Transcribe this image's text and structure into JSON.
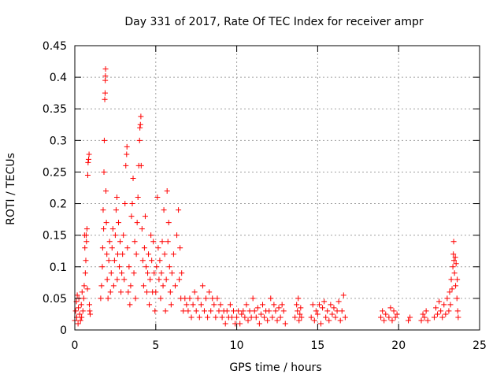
{
  "chart_data": {
    "type": "scatter",
    "title": "Day 331 of 2017, Rate Of TEC Index for receiver ampr",
    "xlabel": "GPS time / hours",
    "ylabel": "ROTI / TECUs",
    "xlim": [
      0,
      25
    ],
    "ylim": [
      0,
      0.45
    ],
    "x_ticks": [
      0,
      5,
      10,
      15,
      20,
      25
    ],
    "x_tick_labels": [
      "0",
      "5",
      "10",
      "15",
      "20",
      "25"
    ],
    "y_ticks": [
      0,
      0.05,
      0.1,
      0.15,
      0.2,
      0.25,
      0.3,
      0.35,
      0.4,
      0.45
    ],
    "y_tick_labels": [
      "0",
      "0.05",
      "0.1",
      "0.15",
      "0.2",
      "0.25",
      "0.3",
      "0.35",
      "0.4",
      "0.45"
    ],
    "grid": true,
    "marker": "+",
    "series": [
      {
        "name": "ROTI",
        "color": "#ff0000",
        "points": [
          [
            0.0,
            0.015
          ],
          [
            0.05,
            0.03
          ],
          [
            0.1,
            0.045
          ],
          [
            0.12,
            0.02
          ],
          [
            0.15,
            0.055
          ],
          [
            0.2,
            0.01
          ],
          [
            0.22,
            0.035
          ],
          [
            0.25,
            0.05
          ],
          [
            0.3,
            0.025
          ],
          [
            0.35,
            0.015
          ],
          [
            0.4,
            0.04
          ],
          [
            0.42,
            0.02
          ],
          [
            0.45,
            0.06
          ],
          [
            0.5,
            0.03
          ],
          [
            0.55,
            0.05
          ],
          [
            0.58,
            0.07
          ],
          [
            0.6,
            0.15
          ],
          [
            0.62,
            0.13
          ],
          [
            0.65,
            0.09
          ],
          [
            0.68,
            0.11
          ],
          [
            0.7,
            0.15
          ],
          [
            0.72,
            0.14
          ],
          [
            0.75,
            0.16
          ],
          [
            0.78,
            0.065
          ],
          [
            0.8,
            0.245
          ],
          [
            0.82,
            0.265
          ],
          [
            0.85,
            0.27
          ],
          [
            0.88,
            0.278
          ],
          [
            0.9,
            0.04
          ],
          [
            0.92,
            0.03
          ],
          [
            0.95,
            0.025
          ],
          [
            1.6,
            0.05
          ],
          [
            1.65,
            0.07
          ],
          [
            1.7,
            0.1
          ],
          [
            1.72,
            0.13
          ],
          [
            1.75,
            0.19
          ],
          [
            1.78,
            0.16
          ],
          [
            1.8,
            0.25
          ],
          [
            1.82,
            0.3
          ],
          [
            1.85,
            0.365
          ],
          [
            1.87,
            0.375
          ],
          [
            1.88,
            0.395
          ],
          [
            1.89,
            0.402
          ],
          [
            1.9,
            0.413
          ],
          [
            1.92,
            0.22
          ],
          [
            1.95,
            0.17
          ],
          [
            1.98,
            0.12
          ],
          [
            2.0,
            0.08
          ],
          [
            2.05,
            0.05
          ],
          [
            2.1,
            0.11
          ],
          [
            2.15,
            0.14
          ],
          [
            2.2,
            0.06
          ],
          [
            2.25,
            0.09
          ],
          [
            2.3,
            0.13
          ],
          [
            2.35,
            0.16
          ],
          [
            2.4,
            0.07
          ],
          [
            2.45,
            0.11
          ],
          [
            2.5,
            0.15
          ],
          [
            2.55,
            0.19
          ],
          [
            2.6,
            0.21
          ],
          [
            2.62,
            0.08
          ],
          [
            2.65,
            0.12
          ],
          [
            2.7,
            0.17
          ],
          [
            2.75,
            0.1
          ],
          [
            2.8,
            0.14
          ],
          [
            2.85,
            0.06
          ],
          [
            2.9,
            0.09
          ],
          [
            2.95,
            0.12
          ],
          [
            3.0,
            0.15
          ],
          [
            3.05,
            0.08
          ],
          [
            3.1,
            0.2
          ],
          [
            3.15,
            0.26
          ],
          [
            3.2,
            0.278
          ],
          [
            3.22,
            0.29
          ],
          [
            3.25,
            0.13
          ],
          [
            3.3,
            0.06
          ],
          [
            3.35,
            0.1
          ],
          [
            3.4,
            0.04
          ],
          [
            3.45,
            0.07
          ],
          [
            3.5,
            0.18
          ],
          [
            3.55,
            0.2
          ],
          [
            3.6,
            0.24
          ],
          [
            3.65,
            0.09
          ],
          [
            3.7,
            0.14
          ],
          [
            3.75,
            0.05
          ],
          [
            3.8,
            0.12
          ],
          [
            3.85,
            0.17
          ],
          [
            3.9,
            0.21
          ],
          [
            3.95,
            0.26
          ],
          [
            4.0,
            0.3
          ],
          [
            4.02,
            0.32
          ],
          [
            4.05,
            0.325
          ],
          [
            4.08,
            0.338
          ],
          [
            4.1,
            0.26
          ],
          [
            4.15,
            0.16
          ],
          [
            4.2,
            0.11
          ],
          [
            4.25,
            0.07
          ],
          [
            4.3,
            0.13
          ],
          [
            4.35,
            0.18
          ],
          [
            4.4,
            0.1
          ],
          [
            4.45,
            0.06
          ],
          [
            4.5,
            0.09
          ],
          [
            4.55,
            0.12
          ],
          [
            4.6,
            0.04
          ],
          [
            4.65,
            0.08
          ],
          [
            4.7,
            0.15
          ],
          [
            4.75,
            0.11
          ],
          [
            4.8,
            0.06
          ],
          [
            4.85,
            0.14
          ],
          [
            4.9,
            0.09
          ],
          [
            4.95,
            0.03
          ],
          [
            5.0,
            0.06
          ],
          [
            5.05,
            0.1
          ],
          [
            5.1,
            0.21
          ],
          [
            5.15,
            0.13
          ],
          [
            5.2,
            0.08
          ],
          [
            5.25,
            0.11
          ],
          [
            5.3,
            0.05
          ],
          [
            5.35,
            0.09
          ],
          [
            5.4,
            0.14
          ],
          [
            5.45,
            0.07
          ],
          [
            5.5,
            0.19
          ],
          [
            5.55,
            0.12
          ],
          [
            5.6,
            0.03
          ],
          [
            5.65,
            0.08
          ],
          [
            5.7,
            0.22
          ],
          [
            5.75,
            0.14
          ],
          [
            5.8,
            0.17
          ],
          [
            5.85,
            0.1
          ],
          [
            5.9,
            0.06
          ],
          [
            5.95,
            0.04
          ],
          [
            6.0,
            0.09
          ],
          [
            6.1,
            0.12
          ],
          [
            6.2,
            0.07
          ],
          [
            6.3,
            0.15
          ],
          [
            6.4,
            0.19
          ],
          [
            6.45,
            0.08
          ],
          [
            6.5,
            0.13
          ],
          [
            6.55,
            0.05
          ],
          [
            6.6,
            0.09
          ],
          [
            6.7,
            0.03
          ],
          [
            6.8,
            0.05
          ],
          [
            6.9,
            0.04
          ],
          [
            7.0,
            0.03
          ],
          [
            7.1,
            0.05
          ],
          [
            7.2,
            0.02
          ],
          [
            7.3,
            0.04
          ],
          [
            7.4,
            0.06
          ],
          [
            7.5,
            0.03
          ],
          [
            7.6,
            0.05
          ],
          [
            7.7,
            0.02
          ],
          [
            7.8,
            0.04
          ],
          [
            7.9,
            0.07
          ],
          [
            8.0,
            0.03
          ],
          [
            8.1,
            0.05
          ],
          [
            8.2,
            0.02
          ],
          [
            8.3,
            0.06
          ],
          [
            8.4,
            0.03
          ],
          [
            8.5,
            0.05
          ],
          [
            8.6,
            0.04
          ],
          [
            8.7,
            0.02
          ],
          [
            8.8,
            0.05
          ],
          [
            8.9,
            0.03
          ],
          [
            9.0,
            0.04
          ],
          [
            9.1,
            0.02
          ],
          [
            9.2,
            0.03
          ],
          [
            9.3,
            0.01
          ],
          [
            9.4,
            0.03
          ],
          [
            9.5,
            0.02
          ],
          [
            9.6,
            0.04
          ],
          [
            9.7,
            0.02
          ],
          [
            9.8,
            0.03
          ],
          [
            9.9,
            0.01
          ],
          [
            10.0,
            0.02
          ],
          [
            10.1,
            0.03
          ],
          [
            10.2,
            0.01
          ],
          [
            10.3,
            0.025
          ],
          [
            10.4,
            0.03
          ],
          [
            10.5,
            0.02
          ],
          [
            10.6,
            0.04
          ],
          [
            10.7,
            0.015
          ],
          [
            10.8,
            0.03
          ],
          [
            10.9,
            0.02
          ],
          [
            11.0,
            0.05
          ],
          [
            11.1,
            0.03
          ],
          [
            11.2,
            0.02
          ],
          [
            11.3,
            0.035
          ],
          [
            11.4,
            0.01
          ],
          [
            11.5,
            0.025
          ],
          [
            11.6,
            0.04
          ],
          [
            11.7,
            0.02
          ],
          [
            11.8,
            0.03
          ],
          [
            11.9,
            0.015
          ],
          [
            12.0,
            0.03
          ],
          [
            12.1,
            0.05
          ],
          [
            12.2,
            0.02
          ],
          [
            12.3,
            0.04
          ],
          [
            12.4,
            0.03
          ],
          [
            12.5,
            0.015
          ],
          [
            12.6,
            0.035
          ],
          [
            12.7,
            0.02
          ],
          [
            12.8,
            0.04
          ],
          [
            12.9,
            0.03
          ],
          [
            13.0,
            0.01
          ],
          [
            13.6,
            0.02
          ],
          [
            13.7,
            0.04
          ],
          [
            13.75,
            0.03
          ],
          [
            13.8,
            0.05
          ],
          [
            13.85,
            0.015
          ],
          [
            13.9,
            0.025
          ],
          [
            13.95,
            0.035
          ],
          [
            14.0,
            0.02
          ],
          [
            14.6,
            0.02
          ],
          [
            14.7,
            0.04
          ],
          [
            14.8,
            0.015
          ],
          [
            14.9,
            0.03
          ],
          [
            15.0,
            0.025
          ],
          [
            15.1,
            0.04
          ],
          [
            15.2,
            0.01
          ],
          [
            15.3,
            0.035
          ],
          [
            15.4,
            0.045
          ],
          [
            15.5,
            0.02
          ],
          [
            15.6,
            0.03
          ],
          [
            15.7,
            0.015
          ],
          [
            15.8,
            0.04
          ],
          [
            15.9,
            0.025
          ],
          [
            16.0,
            0.035
          ],
          [
            16.1,
            0.02
          ],
          [
            16.2,
            0.03
          ],
          [
            16.3,
            0.045
          ],
          [
            16.4,
            0.015
          ],
          [
            16.5,
            0.03
          ],
          [
            16.6,
            0.055
          ],
          [
            16.7,
            0.02
          ],
          [
            18.9,
            0.02
          ],
          [
            19.0,
            0.03
          ],
          [
            19.1,
            0.015
          ],
          [
            19.2,
            0.025
          ],
          [
            19.4,
            0.02
          ],
          [
            19.5,
            0.035
          ],
          [
            19.6,
            0.015
          ],
          [
            19.7,
            0.03
          ],
          [
            19.8,
            0.02
          ],
          [
            19.9,
            0.025
          ],
          [
            20.6,
            0.015
          ],
          [
            20.7,
            0.02
          ],
          [
            21.4,
            0.015
          ],
          [
            21.5,
            0.025
          ],
          [
            21.6,
            0.02
          ],
          [
            21.7,
            0.03
          ],
          [
            21.8,
            0.015
          ],
          [
            22.2,
            0.02
          ],
          [
            22.3,
            0.035
          ],
          [
            22.4,
            0.025
          ],
          [
            22.5,
            0.045
          ],
          [
            22.6,
            0.03
          ],
          [
            22.7,
            0.02
          ],
          [
            22.8,
            0.04
          ],
          [
            22.9,
            0.025
          ],
          [
            23.0,
            0.05
          ],
          [
            23.1,
            0.03
          ],
          [
            23.15,
            0.06
          ],
          [
            23.2,
            0.04
          ],
          [
            23.25,
            0.08
          ],
          [
            23.3,
            0.065
          ],
          [
            23.35,
            0.1
          ],
          [
            23.38,
            0.12
          ],
          [
            23.4,
            0.14
          ],
          [
            23.42,
            0.11
          ],
          [
            23.45,
            0.09
          ],
          [
            23.5,
            0.115
          ],
          [
            23.52,
            0.07
          ],
          [
            23.55,
            0.105
          ],
          [
            23.6,
            0.05
          ],
          [
            23.62,
            0.08
          ],
          [
            23.65,
            0.03
          ],
          [
            23.68,
            0.02
          ]
        ]
      }
    ]
  }
}
